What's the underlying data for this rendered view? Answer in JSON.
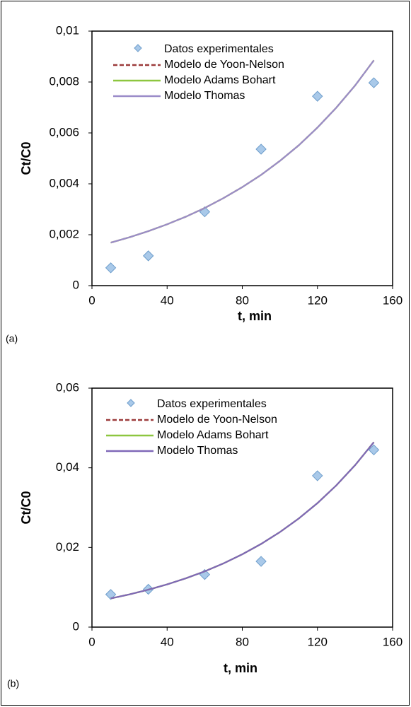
{
  "chart_data": [
    {
      "type": "line",
      "panel_label": "(a)",
      "x_label": "t, min",
      "y_label": "Ct/C0",
      "xlim": [
        0,
        160
      ],
      "xticks": [
        0,
        40,
        80,
        120,
        160
      ],
      "ylim": [
        0,
        0.01
      ],
      "yticks": [
        0,
        {
          "value": 0.002,
          "label": "0,002"
        },
        {
          "value": 0.004,
          "label": "0,004"
        },
        {
          "value": 0.006,
          "label": "0,006"
        },
        {
          "value": 0.008,
          "label": "0,008"
        },
        {
          "value": 0.01,
          "label": "0,01"
        }
      ],
      "series": [
        {
          "name": "Datos experimentales",
          "style": "markers",
          "color": "#a9c9e9",
          "x": [
            10,
            30,
            60,
            90,
            120,
            150
          ],
          "values": [
            0.0007,
            0.00117,
            0.0029,
            0.00536,
            0.00744,
            0.00797
          ]
        },
        {
          "name": "Modelo de Yoon-Nelson",
          "style": "dashed",
          "color": "#9c3b3b",
          "x": [
            10,
            20,
            30,
            40,
            50,
            60,
            70,
            80,
            90,
            100,
            110,
            120,
            130,
            140,
            150
          ],
          "values": [
            0.00169,
            0.0019,
            0.00214,
            0.00241,
            0.00271,
            0.00305,
            0.00344,
            0.00387,
            0.00435,
            0.0049,
            0.00551,
            0.00621,
            0.00699,
            0.00786,
            0.00885
          ]
        },
        {
          "name": "Modelo Adams Bohart",
          "style": "solid",
          "color": "#8dc63f",
          "x": [
            10,
            20,
            30,
            40,
            50,
            60,
            70,
            80,
            90,
            100,
            110,
            120,
            130,
            140,
            150
          ],
          "values": [
            0.00169,
            0.0019,
            0.00214,
            0.00241,
            0.00271,
            0.00305,
            0.00344,
            0.00387,
            0.00435,
            0.0049,
            0.00551,
            0.00621,
            0.00699,
            0.00786,
            0.00885
          ]
        },
        {
          "name": "Modelo Thomas",
          "style": "solid",
          "color": "#9b8cc9",
          "x": [
            10,
            20,
            30,
            40,
            50,
            60,
            70,
            80,
            90,
            100,
            110,
            120,
            130,
            140,
            150
          ],
          "values": [
            0.00169,
            0.0019,
            0.00214,
            0.00241,
            0.00271,
            0.00305,
            0.00344,
            0.00387,
            0.00435,
            0.0049,
            0.00551,
            0.00621,
            0.00699,
            0.00786,
            0.00885
          ]
        }
      ]
    },
    {
      "type": "line",
      "panel_label": "(b)",
      "x_label": "t, min",
      "y_label": "Ct/C0",
      "xlim": [
        0,
        160
      ],
      "xticks": [
        0,
        40,
        80,
        120,
        160
      ],
      "ylim": [
        0,
        0.06
      ],
      "yticks": [
        0,
        {
          "value": 0.02,
          "label": "0,02"
        },
        {
          "value": 0.04,
          "label": "0,04"
        },
        {
          "value": 0.06,
          "label": "0,06"
        }
      ],
      "series": [
        {
          "name": "Datos experimentales",
          "style": "markers",
          "color": "#a9c9e9",
          "x": [
            10,
            30,
            60,
            90,
            120,
            150
          ],
          "values": [
            0.0082,
            0.0095,
            0.0132,
            0.0165,
            0.038,
            0.0445
          ]
        },
        {
          "name": "Modelo de Yoon-Nelson",
          "style": "dashed",
          "color": "#9c3b3b",
          "x": [
            10,
            20,
            30,
            40,
            50,
            60,
            70,
            80,
            90,
            100,
            110,
            120,
            130,
            140,
            150
          ],
          "values": [
            0.0072,
            0.00822,
            0.00939,
            0.01073,
            0.01226,
            0.014,
            0.016,
            0.01828,
            0.02088,
            0.02385,
            0.02725,
            0.03113,
            0.03557,
            0.04064,
            0.04642
          ]
        },
        {
          "name": "Modelo Adams Bohart",
          "style": "solid",
          "color": "#8dc63f",
          "x": [
            10,
            20,
            30,
            40,
            50,
            60,
            70,
            80,
            90,
            100,
            110,
            120,
            130,
            140,
            150
          ],
          "values": [
            0.0072,
            0.00822,
            0.00939,
            0.01073,
            0.01226,
            0.014,
            0.016,
            0.01828,
            0.02088,
            0.02385,
            0.02725,
            0.03113,
            0.03557,
            0.04064,
            0.04642
          ]
        },
        {
          "name": "Modelo Thomas",
          "style": "solid",
          "color": "#7f68b8",
          "x": [
            10,
            20,
            30,
            40,
            50,
            60,
            70,
            80,
            90,
            100,
            110,
            120,
            130,
            140,
            150
          ],
          "values": [
            0.0072,
            0.00822,
            0.00939,
            0.01073,
            0.01226,
            0.014,
            0.016,
            0.01828,
            0.02088,
            0.02385,
            0.02725,
            0.03113,
            0.03557,
            0.04064,
            0.04642
          ]
        }
      ]
    }
  ]
}
